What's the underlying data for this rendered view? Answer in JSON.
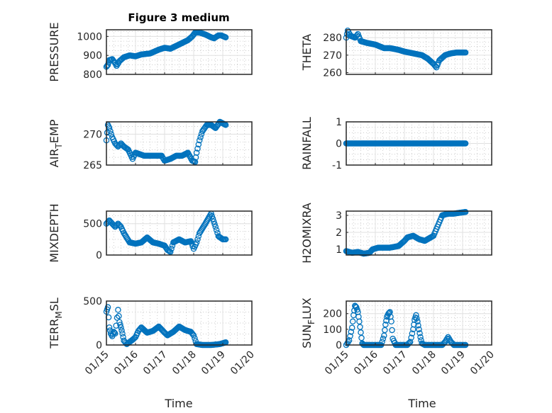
{
  "figure": {
    "title": "Figure 3 medium",
    "xlabel": "Time"
  },
  "chart_data": [
    {
      "type": "scatter",
      "ylabel": "PRESSURE",
      "ylabel_parts": [
        "PRESSURE",
        "",
        ""
      ],
      "ylim": [
        800,
        1035
      ],
      "yticks": [
        800,
        900,
        1000
      ],
      "xlim_days_since": "01/15",
      "xlim": [
        0,
        5
      ],
      "xticks": [
        "01/15",
        "01/16",
        "01/17",
        "01/18",
        "01/19",
        "01/20"
      ],
      "points": [
        [
          0,
          840
        ],
        [
          0.05,
          850
        ],
        [
          0.1,
          875
        ],
        [
          0.2,
          880
        ],
        [
          0.3,
          860
        ],
        [
          0.35,
          845
        ],
        [
          0.45,
          870
        ],
        [
          0.6,
          890
        ],
        [
          0.8,
          900
        ],
        [
          1.0,
          895
        ],
        [
          1.2,
          905
        ],
        [
          1.5,
          910
        ],
        [
          1.8,
          930
        ],
        [
          2.0,
          940
        ],
        [
          2.2,
          935
        ],
        [
          2.4,
          950
        ],
        [
          2.6,
          965
        ],
        [
          2.8,
          980
        ],
        [
          2.95,
          1000
        ],
        [
          3.05,
          1020
        ],
        [
          3.2,
          1020
        ],
        [
          3.4,
          1010
        ],
        [
          3.6,
          995
        ],
        [
          3.7,
          990
        ],
        [
          3.85,
          1005
        ],
        [
          3.95,
          1005
        ],
        [
          4.1,
          995
        ]
      ]
    },
    {
      "type": "scatter",
      "ylabel": "THETA",
      "ylabel_parts": [
        "THETA",
        "",
        ""
      ],
      "ylim": [
        259,
        284.5
      ],
      "yticks": [
        260,
        270,
        280
      ],
      "xlim": [
        0,
        5
      ],
      "points": [
        [
          0,
          280
        ],
        [
          0.05,
          284
        ],
        [
          0.15,
          281
        ],
        [
          0.3,
          280
        ],
        [
          0.4,
          282
        ],
        [
          0.5,
          278
        ],
        [
          0.7,
          277
        ],
        [
          1.0,
          276
        ],
        [
          1.3,
          274
        ],
        [
          1.5,
          274
        ],
        [
          1.8,
          273
        ],
        [
          2.0,
          272
        ],
        [
          2.3,
          271
        ],
        [
          2.6,
          270
        ],
        [
          2.8,
          268
        ],
        [
          3.0,
          265
        ],
        [
          3.1,
          263
        ],
        [
          3.2,
          267
        ],
        [
          3.4,
          270
        ],
        [
          3.6,
          271
        ],
        [
          3.8,
          271.5
        ],
        [
          4.1,
          271.5
        ]
      ]
    },
    {
      "type": "scatter",
      "ylabel": "AIR_TEMP",
      "ylabel_parts": [
        "AIR",
        "T",
        "EMP"
      ],
      "ylim": [
        265,
        272
      ],
      "yticks": [
        265,
        270
      ],
      "xlim": [
        0,
        5
      ],
      "points": [
        [
          0,
          269
        ],
        [
          0.05,
          271.5
        ],
        [
          0.1,
          271
        ],
        [
          0.2,
          269.5
        ],
        [
          0.3,
          268.5
        ],
        [
          0.4,
          268
        ],
        [
          0.5,
          268.5
        ],
        [
          0.6,
          268
        ],
        [
          0.75,
          267.5
        ],
        [
          0.9,
          266
        ],
        [
          1.0,
          267
        ],
        [
          1.3,
          266.5
        ],
        [
          1.6,
          266.5
        ],
        [
          1.9,
          266.5
        ],
        [
          2.0,
          265.7
        ],
        [
          2.2,
          266
        ],
        [
          2.4,
          266.5
        ],
        [
          2.6,
          266.5
        ],
        [
          2.8,
          267
        ],
        [
          2.95,
          265.7
        ],
        [
          3.05,
          265.5
        ],
        [
          3.1,
          267
        ],
        [
          3.2,
          269
        ],
        [
          3.3,
          270.5
        ],
        [
          3.45,
          271.5
        ],
        [
          3.6,
          271.5
        ],
        [
          3.75,
          271
        ],
        [
          3.9,
          272
        ],
        [
          4.1,
          271.5
        ]
      ]
    },
    {
      "type": "scatter",
      "ylabel": "RAINFALL",
      "ylabel_parts": [
        "RAINFALL",
        "",
        ""
      ],
      "ylim": [
        -1,
        1
      ],
      "yticks": [
        -1,
        0,
        1
      ],
      "xlim": [
        0,
        5
      ],
      "points": [
        [
          0,
          0
        ],
        [
          4.1,
          0
        ]
      ]
    },
    {
      "type": "scatter",
      "ylabel": "MIXDEPTH",
      "ylabel_parts": [
        "MIXDEPTH",
        "",
        ""
      ],
      "ylim": [
        0,
        700
      ],
      "yticks": [
        0,
        500
      ],
      "xlim": [
        0,
        5
      ],
      "points": [
        [
          0,
          500
        ],
        [
          0.1,
          550
        ],
        [
          0.2,
          500
        ],
        [
          0.3,
          450
        ],
        [
          0.4,
          500
        ],
        [
          0.5,
          450
        ],
        [
          0.6,
          350
        ],
        [
          0.8,
          200
        ],
        [
          1.0,
          180
        ],
        [
          1.2,
          200
        ],
        [
          1.4,
          280
        ],
        [
          1.6,
          200
        ],
        [
          1.8,
          180
        ],
        [
          2.0,
          150
        ],
        [
          2.1,
          80
        ],
        [
          2.2,
          50
        ],
        [
          2.3,
          200
        ],
        [
          2.5,
          250
        ],
        [
          2.7,
          200
        ],
        [
          2.9,
          220
        ],
        [
          3.0,
          100
        ],
        [
          3.1,
          200
        ],
        [
          3.2,
          350
        ],
        [
          3.4,
          500
        ],
        [
          3.6,
          660
        ],
        [
          3.75,
          450
        ],
        [
          3.85,
          300
        ],
        [
          4.0,
          250
        ],
        [
          4.1,
          250
        ]
      ]
    },
    {
      "type": "scatter",
      "ylabel": "H2OMIXRA",
      "ylabel_parts": [
        "H2OMIXRA",
        "",
        ""
      ],
      "ylim": [
        0.67,
        3.25
      ],
      "yticks": [
        1,
        2,
        3
      ],
      "xlim": [
        0,
        5
      ],
      "points": [
        [
          0,
          0.9
        ],
        [
          0.2,
          0.8
        ],
        [
          0.4,
          0.85
        ],
        [
          0.6,
          0.75
        ],
        [
          0.8,
          0.8
        ],
        [
          0.9,
          1.0
        ],
        [
          1.1,
          1.1
        ],
        [
          1.5,
          1.1
        ],
        [
          1.8,
          1.2
        ],
        [
          2.0,
          1.5
        ],
        [
          2.1,
          1.7
        ],
        [
          2.3,
          1.8
        ],
        [
          2.5,
          1.6
        ],
        [
          2.7,
          1.5
        ],
        [
          2.9,
          1.7
        ],
        [
          3.0,
          1.8
        ],
        [
          3.1,
          2.2
        ],
        [
          3.2,
          2.6
        ],
        [
          3.3,
          3.0
        ],
        [
          3.5,
          3.1
        ],
        [
          3.7,
          3.1
        ],
        [
          4.1,
          3.2
        ]
      ]
    },
    {
      "type": "scatter",
      "ylabel": "TERR_MSL",
      "ylabel_parts": [
        "TERR",
        "M",
        "SL"
      ],
      "ylim": [
        0,
        500
      ],
      "yticks": [
        0,
        500
      ],
      "xlim": [
        0,
        5
      ],
      "points": [
        [
          0,
          380
        ],
        [
          0.05,
          430
        ],
        [
          0.1,
          200
        ],
        [
          0.15,
          130
        ],
        [
          0.2,
          100
        ],
        [
          0.25,
          150
        ],
        [
          0.3,
          130
        ],
        [
          0.4,
          400
        ],
        [
          0.45,
          260
        ],
        [
          0.5,
          200
        ],
        [
          0.55,
          130
        ],
        [
          0.6,
          50
        ],
        [
          0.7,
          10
        ],
        [
          0.9,
          60
        ],
        [
          1.0,
          90
        ],
        [
          1.1,
          160
        ],
        [
          1.2,
          200
        ],
        [
          1.4,
          140
        ],
        [
          1.6,
          160
        ],
        [
          1.8,
          210
        ],
        [
          2.0,
          140
        ],
        [
          2.1,
          110
        ],
        [
          2.3,
          150
        ],
        [
          2.5,
          210
        ],
        [
          2.7,
          170
        ],
        [
          2.9,
          150
        ],
        [
          3.0,
          110
        ],
        [
          3.1,
          10
        ],
        [
          3.3,
          0
        ],
        [
          3.6,
          0
        ],
        [
          3.9,
          10
        ],
        [
          4.1,
          30
        ]
      ]
    },
    {
      "type": "scatter",
      "ylabel": "SUN_FLUX",
      "ylabel_parts": [
        "SUN",
        "F",
        "LUX"
      ],
      "ylim": [
        0,
        280
      ],
      "yticks": [
        0,
        100,
        200
      ],
      "xlim": [
        0,
        5
      ],
      "points": [
        [
          0,
          0
        ],
        [
          0.1,
          30
        ],
        [
          0.2,
          110
        ],
        [
          0.25,
          190
        ],
        [
          0.3,
          250
        ],
        [
          0.35,
          240
        ],
        [
          0.4,
          210
        ],
        [
          0.45,
          150
        ],
        [
          0.5,
          80
        ],
        [
          0.55,
          10
        ],
        [
          0.6,
          0
        ],
        [
          1.2,
          0
        ],
        [
          1.3,
          60
        ],
        [
          1.35,
          130
        ],
        [
          1.4,
          180
        ],
        [
          1.45,
          200
        ],
        [
          1.5,
          210
        ],
        [
          1.55,
          150
        ],
        [
          1.6,
          40
        ],
        [
          1.7,
          0
        ],
        [
          2.1,
          0
        ],
        [
          2.2,
          20
        ],
        [
          2.3,
          100
        ],
        [
          2.35,
          160
        ],
        [
          2.4,
          190
        ],
        [
          2.45,
          150
        ],
        [
          2.5,
          100
        ],
        [
          2.55,
          50
        ],
        [
          2.6,
          10
        ],
        [
          2.7,
          0
        ],
        [
          3.3,
          0
        ],
        [
          3.4,
          20
        ],
        [
          3.5,
          50
        ],
        [
          3.6,
          20
        ],
        [
          3.7,
          0
        ],
        [
          4.1,
          0
        ]
      ]
    }
  ],
  "xticks": [
    "01/15",
    "01/16",
    "01/17",
    "01/18",
    "01/19",
    "01/20"
  ],
  "colors": {
    "marker": "#0072BD",
    "axis": "#262626",
    "grid": "#e0e0e0"
  }
}
